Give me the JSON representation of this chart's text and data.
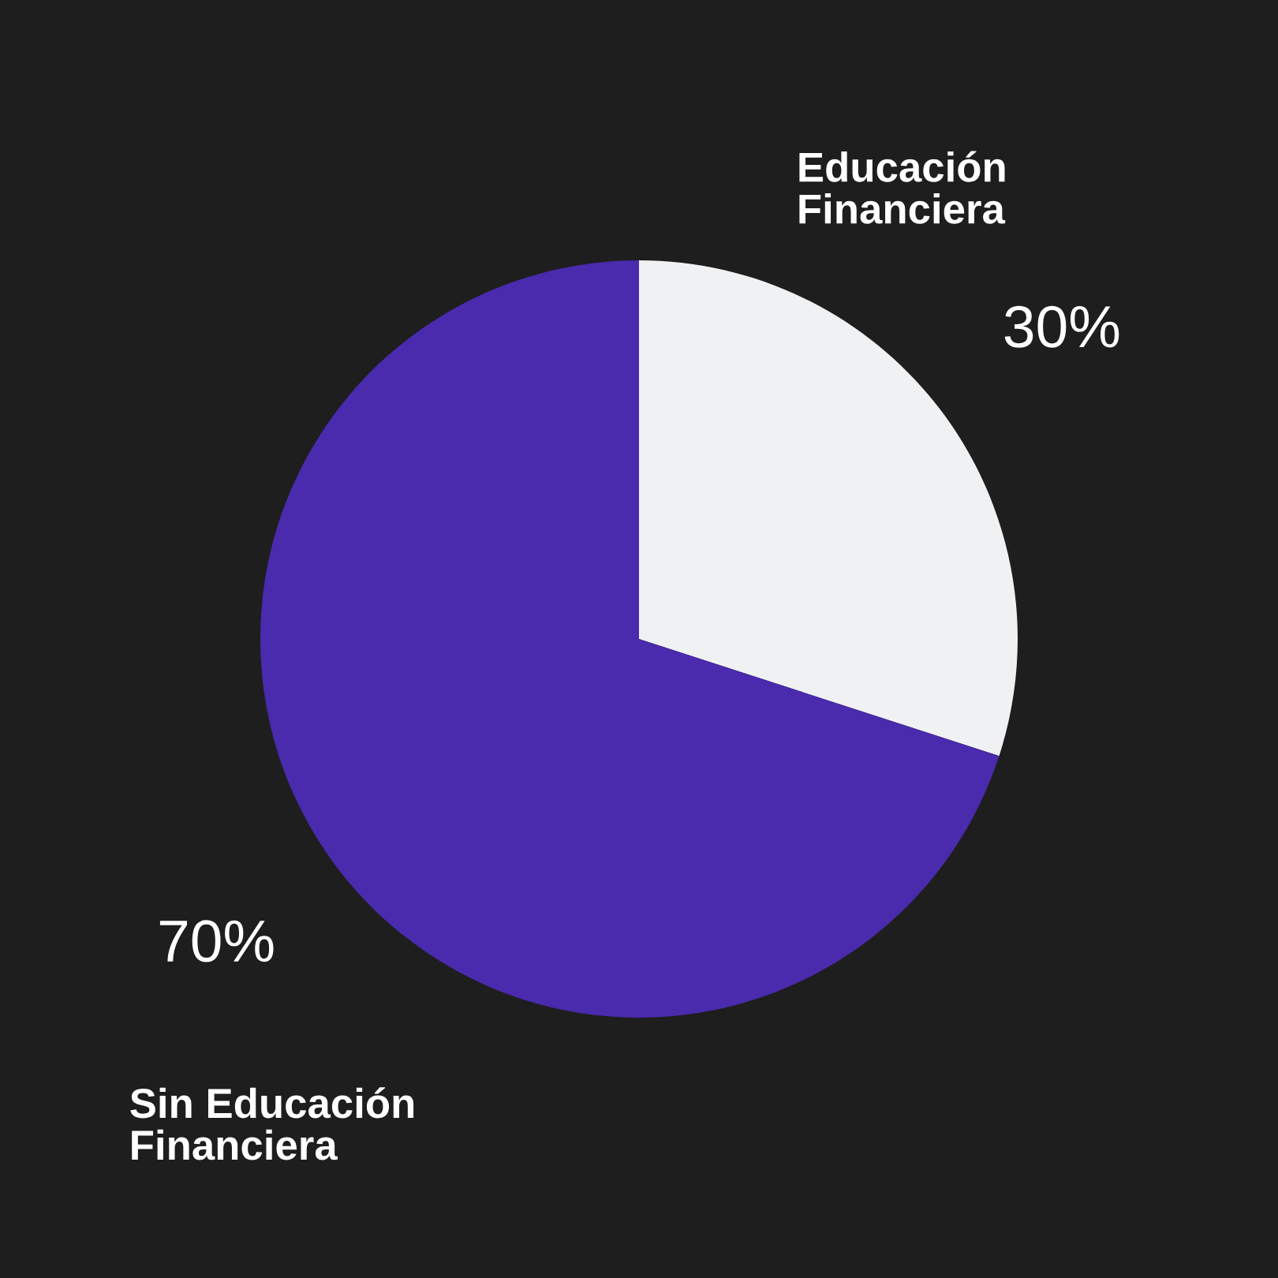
{
  "chart_data": {
    "type": "pie",
    "categories": [
      "Educación\nFinanciera",
      "Sin Educación\nFinanciera"
    ],
    "values": [
      30,
      70
    ],
    "colors": [
      "#f0f1f3",
      "#4a2aad"
    ],
    "value_labels": [
      "30%",
      "70%"
    ]
  }
}
